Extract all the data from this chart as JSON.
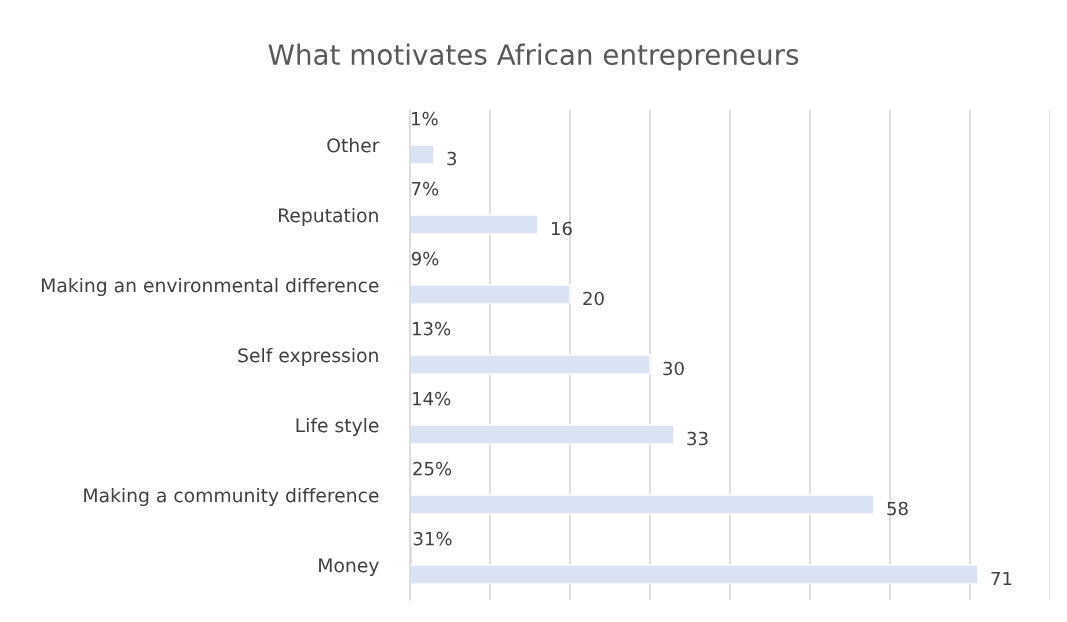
{
  "chart_data": {
    "type": "bar",
    "orientation": "horizontal",
    "title": "What motivates African entrepreneurs",
    "categories": [
      "Other",
      "Reputation",
      "Making an environmental difference",
      "Self expression",
      "Life style",
      "Making a community difference",
      "Money"
    ],
    "series": [
      {
        "color": "#d9d9d9",
        "values": [
          0.01,
          0.07,
          0.09,
          0.13,
          0.14,
          0.25,
          0.31
        ],
        "value_labels": [
          "1%",
          "7%",
          "9%",
          "13%",
          "14%",
          "25%",
          "31%"
        ]
      },
      {
        "color": "#dae3f3",
        "values": [
          3,
          16,
          20,
          30,
          33,
          58,
          71
        ],
        "value_labels": [
          "3",
          "16",
          "20",
          "30",
          "33",
          "58",
          "71"
        ]
      }
    ],
    "xlim": [
      0,
      80
    ],
    "xticks": [
      {
        "value": 0,
        "label": null
      },
      {
        "value": 10,
        "label": null
      },
      {
        "value": 20,
        "label": null
      },
      {
        "value": 30,
        "label": null
      },
      {
        "value": 40,
        "label": null
      },
      {
        "value": 50,
        "label": null
      },
      {
        "value": 60,
        "label": null
      },
      {
        "value": 70,
        "label": null
      },
      {
        "value": 80,
        "label": null
      }
    ],
    "tick_labels": "y",
    "grid": "x",
    "legend": false
  }
}
